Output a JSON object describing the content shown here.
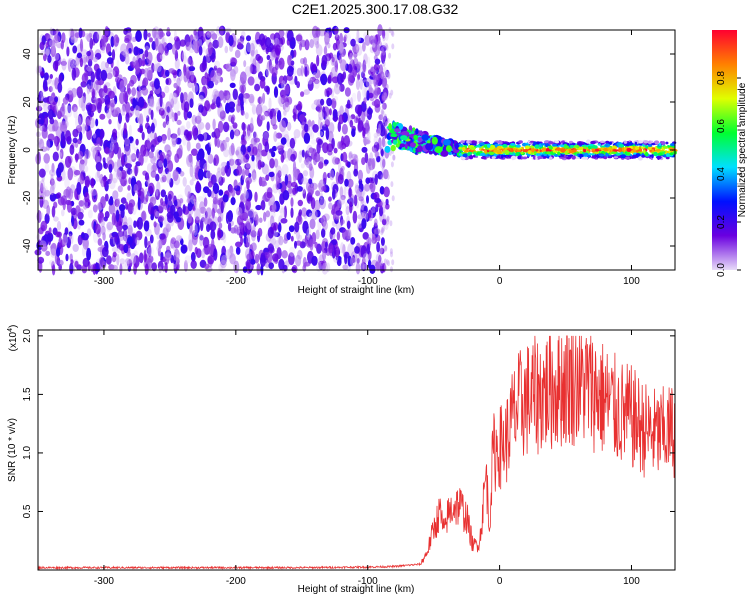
{
  "title": "C2E1.2025.300.17.08.G32",
  "chart_data": [
    {
      "type": "heatmap",
      "xlabel": "Height of straight line (km)",
      "ylabel": "Frequency (Hz)",
      "xlim": [
        -350,
        133
      ],
      "ylim": [
        -50,
        50
      ],
      "x_ticks": [
        -300,
        -200,
        -100,
        0,
        100
      ],
      "x_tick_labels": [
        "-300",
        "-200",
        "-100",
        "0",
        "100"
      ],
      "y_ticks": [
        -40,
        -20,
        0,
        20,
        40
      ],
      "y_tick_labels": [
        "-40",
        "-20",
        "0",
        "20",
        "40"
      ],
      "colorbar": {
        "label": "Normalized spectral amplitude",
        "range": [
          0,
          1
        ],
        "ticks": [
          0.0,
          0.2,
          0.4,
          0.6,
          0.8
        ],
        "tick_labels": [
          "0.0",
          "0.2",
          "0.4",
          "0.6",
          "0.8"
        ],
        "colors": [
          "#e8dcf8",
          "#6a00e0",
          "#0010ff",
          "#00e0ff",
          "#00ff30",
          "#e0ff00",
          "#ff8000",
          "#ff0030"
        ]
      },
      "regions": [
        {
          "x_range": [
            -350,
            -85
          ],
          "freq_range": [
            -50,
            50
          ],
          "amplitude": 0.12,
          "pattern": "broadband noise"
        },
        {
          "x_range": [
            -85,
            -30
          ],
          "freq_center": [
            6,
            0
          ],
          "amplitude": 0.5,
          "pattern": "converging track"
        },
        {
          "x_range": [
            -30,
            133
          ],
          "freq_center": [
            0,
            0
          ],
          "amplitude": 0.85,
          "pattern": "narrow band at 0 Hz"
        }
      ]
    },
    {
      "type": "line",
      "xlabel": "Height of straight line (km)",
      "ylabel": "SNR (10 * v/v)",
      "y_multiplier_label": "(x10",
      "y_multiplier_exp": "4",
      "xlim": [
        -350,
        133
      ],
      "ylim": [
        0,
        2.05
      ],
      "x_ticks": [
        -300,
        -200,
        -100,
        0,
        100
      ],
      "x_tick_labels": [
        "-300",
        "-200",
        "-100",
        "0",
        "100"
      ],
      "y_ticks": [
        0.5,
        1.0,
        1.5,
        2.0
      ],
      "y_tick_labels": [
        "0.5",
        "1.0",
        "1.5",
        "2.0"
      ],
      "line_color": "#e83030",
      "series": [
        {
          "x": [
            -350,
            -300,
            -250,
            -200,
            -150,
            -100,
            -80,
            -60,
            -55,
            -50,
            -45,
            -42,
            -40,
            -35,
            -30,
            -25,
            -20,
            -15,
            -10,
            -8,
            -5,
            0,
            5,
            10,
            15,
            20,
            30,
            40,
            50,
            60,
            70,
            80,
            90,
            100,
            110,
            120,
            133
          ],
          "y": [
            0.02,
            0.02,
            0.02,
            0.02,
            0.02,
            0.025,
            0.03,
            0.05,
            0.15,
            0.35,
            0.5,
            0.3,
            0.45,
            0.55,
            0.55,
            0.45,
            0.2,
            0.25,
            0.85,
            0.35,
            1.0,
            1.05,
            1.1,
            1.3,
            1.4,
            1.45,
            1.5,
            1.55,
            1.6,
            1.62,
            1.55,
            1.45,
            1.35,
            1.3,
            1.2,
            1.15,
            1.2
          ]
        }
      ]
    }
  ]
}
